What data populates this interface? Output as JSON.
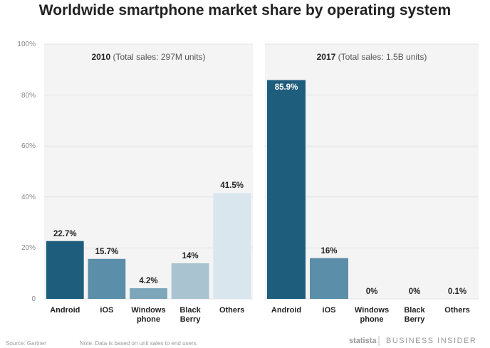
{
  "title": "Worldwide smartphone market share by operating system",
  "chart_data": [
    {
      "type": "bar",
      "year": "2010",
      "subtitle": "(Total sales: 297M units)",
      "categories": [
        "Android",
        "iOS",
        "Windows phone",
        "Black Berry",
        "Others"
      ],
      "values": [
        22.7,
        15.7,
        4.2,
        14,
        41.5
      ],
      "value_labels": [
        "22.7%",
        "15.7%",
        "4.2%",
        "14%",
        "41.5%"
      ],
      "colors": [
        "#1f5d7c",
        "#5b8ea8",
        "#7ea6ba",
        "#a9c3d1",
        "#d9e6ed"
      ],
      "ylim": [
        0,
        100
      ],
      "yticks": [
        0,
        {
          "value": 20,
          "label": "20%"
        },
        {
          "value": 40,
          "label": "40%"
        },
        {
          "value": 60,
          "label": "60%"
        },
        {
          "value": 80,
          "label": "80%"
        },
        {
          "value": 100,
          "label": "100%"
        }
      ],
      "grid": true
    },
    {
      "type": "bar",
      "year": "2017",
      "subtitle": "(Total sales: 1.5B units)",
      "categories": [
        "Android",
        "iOS",
        "Windows phone",
        "Black Berry",
        "Others"
      ],
      "values": [
        85.9,
        16,
        0,
        0,
        0.1
      ],
      "value_labels": [
        "85.9%",
        "16%",
        "0%",
        "0%",
        "0.1%"
      ],
      "colors": [
        "#1f5d7c",
        "#5b8ea8",
        "#7ea6ba",
        "#a9c3d1",
        "#d9e6ed"
      ],
      "ylim": [
        0,
        100
      ],
      "yticks": [
        0,
        {
          "value": 20,
          "label": "20%"
        },
        {
          "value": 40,
          "label": "40%"
        },
        {
          "value": 60,
          "label": "60%"
        },
        {
          "value": 80,
          "label": "80%"
        },
        {
          "value": 100,
          "label": "100%"
        }
      ],
      "grid": true
    }
  ],
  "footer": {
    "source": "Source: Gartner",
    "note": "Note: Data is based on unit sales to end users.",
    "statista": "statista",
    "brand": "BUSINESS INSIDER"
  }
}
